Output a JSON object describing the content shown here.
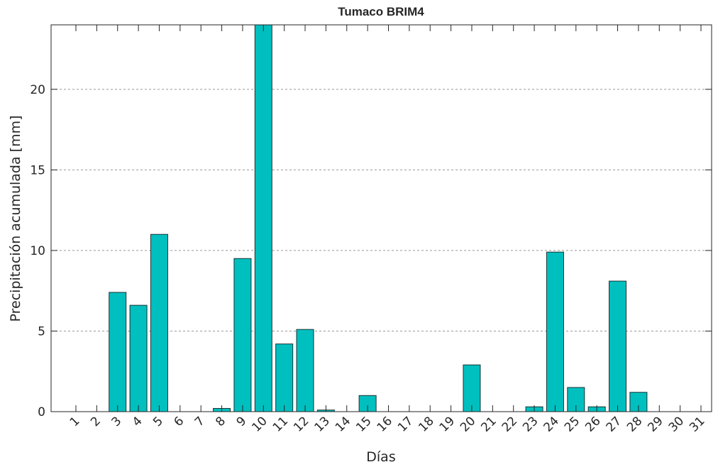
{
  "chart_data": {
    "type": "bar",
    "title": "Tumaco BRIM4",
    "x_label": "Días",
    "y_label": "Precipitación acumulada [mm]",
    "categories": [
      "1",
      "2",
      "3",
      "4",
      "5",
      "6",
      "7",
      "8",
      "9",
      "10",
      "11",
      "12",
      "13",
      "14",
      "15",
      "16",
      "17",
      "18",
      "19",
      "20",
      "21",
      "22",
      "23",
      "24",
      "25",
      "26",
      "27",
      "28",
      "29",
      "30",
      "31"
    ],
    "values": [
      0,
      0,
      7.4,
      6.6,
      11,
      0,
      0,
      0.2,
      9.5,
      24,
      4.2,
      5.1,
      0.1,
      0,
      1.0,
      0,
      0,
      0,
      0,
      2.9,
      0,
      0,
      0.3,
      9.9,
      1.5,
      0.3,
      8.1,
      1.2,
      0,
      0,
      0
    ],
    "color": "#00bfbf",
    "ylim": [
      0,
      24
    ],
    "yticks": [
      0,
      5,
      10,
      15,
      20
    ],
    "grid": true
  }
}
